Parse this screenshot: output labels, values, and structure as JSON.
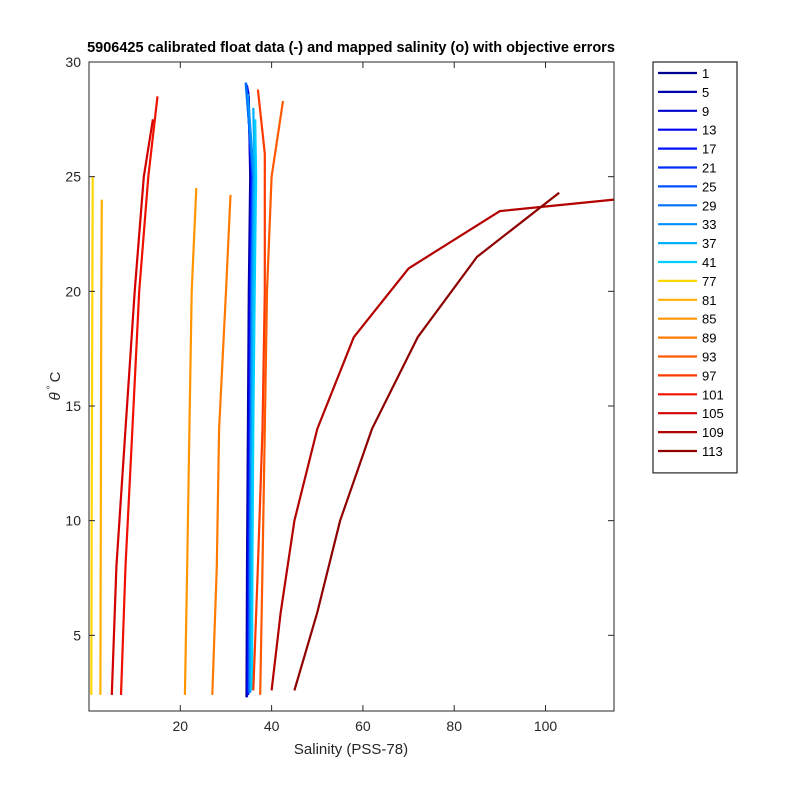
{
  "chart_data": {
    "type": "line",
    "title": "5906425 calibrated float data (-) and mapped salinity (o) with objective errors",
    "xlabel": "Salinity (PSS-78)",
    "ylabel_main": "θ",
    "ylabel_sup": "°",
    "ylabel_unit": "C",
    "xlim": [
      0,
      115
    ],
    "ylim": [
      1.7,
      30
    ],
    "xticks": [
      "20",
      "40",
      "60",
      "80",
      "100"
    ],
    "xtick_values": [
      20,
      40,
      60,
      80,
      100
    ],
    "yticks": [
      "5",
      "10",
      "15",
      "20",
      "25",
      "30"
    ],
    "ytick_values": [
      5,
      10,
      15,
      20,
      25,
      30
    ],
    "legend_position": "outside-right",
    "grid": false,
    "series": [
      {
        "name": "1",
        "color": "#00008f",
        "points": [
          [
            34.5,
            2.3
          ],
          [
            34.6,
            8
          ],
          [
            34.8,
            14
          ],
          [
            35.0,
            20
          ],
          [
            35.3,
            25
          ],
          [
            35.0,
            28.5
          ]
        ]
      },
      {
        "name": "5",
        "color": "#0000b0",
        "points": [
          [
            34.6,
            2.3
          ],
          [
            34.7,
            8
          ],
          [
            34.9,
            14
          ],
          [
            35.1,
            20
          ],
          [
            35.4,
            25
          ],
          [
            34.9,
            28.7
          ]
        ]
      },
      {
        "name": "9",
        "color": "#0000cf",
        "points": [
          [
            34.7,
            2.4
          ],
          [
            34.8,
            8
          ],
          [
            35.0,
            14
          ],
          [
            35.2,
            20
          ],
          [
            35.5,
            25
          ],
          [
            34.8,
            28.8
          ]
        ]
      },
      {
        "name": "13",
        "color": "#0000ef",
        "points": [
          [
            34.8,
            2.4
          ],
          [
            34.9,
            8
          ],
          [
            35.1,
            14
          ],
          [
            35.3,
            20
          ],
          [
            35.6,
            25
          ],
          [
            34.7,
            28.9
          ]
        ]
      },
      {
        "name": "17",
        "color": "#0010ff",
        "points": [
          [
            34.9,
            2.4
          ],
          [
            35.0,
            8
          ],
          [
            35.2,
            14
          ],
          [
            35.4,
            20
          ],
          [
            35.7,
            25
          ],
          [
            34.6,
            29.0
          ]
        ]
      },
      {
        "name": "21",
        "color": "#0030ff",
        "points": [
          [
            35.0,
            2.5
          ],
          [
            35.1,
            8
          ],
          [
            35.3,
            14
          ],
          [
            35.5,
            20
          ],
          [
            35.8,
            25
          ],
          [
            34.5,
            29.0
          ]
        ]
      },
      {
        "name": "25",
        "color": "#0050ff",
        "points": [
          [
            35.1,
            2.5
          ],
          [
            35.2,
            8
          ],
          [
            35.4,
            14
          ],
          [
            35.6,
            20
          ],
          [
            35.9,
            25
          ],
          [
            34.4,
            29.1
          ]
        ]
      },
      {
        "name": "29",
        "color": "#0070ff",
        "points": [
          [
            35.2,
            2.5
          ],
          [
            35.3,
            8
          ],
          [
            35.5,
            14
          ],
          [
            35.7,
            20
          ],
          [
            36.0,
            25
          ],
          [
            34.3,
            29.1
          ]
        ]
      },
      {
        "name": "33",
        "color": "#0090ff",
        "points": [
          [
            35.3,
            2.5
          ],
          [
            35.4,
            8
          ],
          [
            35.6,
            14
          ],
          [
            35.8,
            20
          ],
          [
            36.1,
            25
          ],
          [
            34.8,
            28.6
          ]
        ]
      },
      {
        "name": "37",
        "color": "#00b0ff",
        "points": [
          [
            35.5,
            2.6
          ],
          [
            35.6,
            8
          ],
          [
            35.8,
            14
          ],
          [
            36.0,
            20
          ],
          [
            36.3,
            25
          ],
          [
            36.0,
            28.0
          ]
        ]
      },
      {
        "name": "41",
        "color": "#00d0ff",
        "points": [
          [
            35.7,
            2.6
          ],
          [
            35.8,
            8
          ],
          [
            36.0,
            14
          ],
          [
            36.3,
            20
          ],
          [
            36.6,
            25
          ],
          [
            36.4,
            27.5
          ]
        ]
      },
      {
        "name": "77",
        "color": "#ffd700",
        "points": [
          [
            0.5,
            2.4
          ],
          [
            0.6,
            10
          ],
          [
            0.7,
            18
          ],
          [
            0.8,
            25
          ]
        ]
      },
      {
        "name": "81",
        "color": "#ffb000",
        "points": [
          [
            2.5,
            2.4
          ],
          [
            2.6,
            12
          ],
          [
            2.7,
            20
          ],
          [
            2.8,
            24
          ]
        ]
      },
      {
        "name": "85",
        "color": "#ff9500",
        "points": [
          [
            21,
            2.4
          ],
          [
            21.5,
            8
          ],
          [
            22,
            14
          ],
          [
            22.5,
            20
          ],
          [
            23.5,
            24.5
          ]
        ]
      },
      {
        "name": "89",
        "color": "#ff7b00",
        "points": [
          [
            27,
            2.4
          ],
          [
            28,
            8
          ],
          [
            28.5,
            14
          ],
          [
            30,
            20
          ],
          [
            31,
            24.2
          ]
        ]
      },
      {
        "name": "93",
        "color": "#ff5a00",
        "points": [
          [
            37.5,
            2.4
          ],
          [
            38,
            8
          ],
          [
            38.5,
            14
          ],
          [
            39,
            20
          ],
          [
            40,
            25
          ],
          [
            42.5,
            28.3
          ]
        ]
      },
      {
        "name": "97",
        "color": "#ff3a00",
        "points": [
          [
            36,
            2.6
          ],
          [
            37,
            8
          ],
          [
            38,
            14
          ],
          [
            38.5,
            20
          ],
          [
            38.5,
            26
          ],
          [
            37,
            28.8
          ]
        ]
      },
      {
        "name": "101",
        "color": "#f01000",
        "points": [
          [
            7,
            2.4
          ],
          [
            8,
            8
          ],
          [
            9.5,
            14
          ],
          [
            11,
            20
          ],
          [
            13,
            25
          ],
          [
            15,
            28.5
          ]
        ]
      },
      {
        "name": "105",
        "color": "#d40000",
        "points": [
          [
            5,
            2.4
          ],
          [
            6,
            8
          ],
          [
            8,
            14
          ],
          [
            10,
            20
          ],
          [
            12,
            25
          ],
          [
            14,
            27.5
          ]
        ]
      },
      {
        "name": "109",
        "color": "#b30000",
        "points": [
          [
            40,
            2.6
          ],
          [
            42,
            6
          ],
          [
            45,
            10
          ],
          [
            50,
            14
          ],
          [
            58,
            18
          ],
          [
            70,
            21
          ],
          [
            90,
            23.5
          ],
          [
            115,
            24
          ]
        ]
      },
      {
        "name": "113",
        "color": "#8f0000",
        "points": [
          [
            45,
            2.6
          ],
          [
            50,
            6
          ],
          [
            55,
            10
          ],
          [
            62,
            14
          ],
          [
            72,
            18
          ],
          [
            85,
            21.5
          ],
          [
            103,
            24.3
          ]
        ]
      }
    ]
  }
}
